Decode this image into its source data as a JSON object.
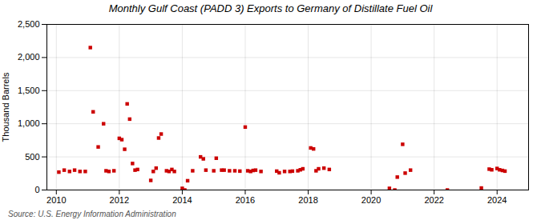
{
  "chart_data": {
    "type": "scatter",
    "title": "Monthly Gulf Coast (PADD 3) Exports to Germany of Distillate Fuel Oil",
    "ylabel": "Thousand Barrels",
    "annotations": [
      "Source: U.S. Energy Information Administration"
    ],
    "color": "#cc0000",
    "marker": "square",
    "grid": true,
    "xlim": [
      2009.7,
      2025.0
    ],
    "ylim": [
      0,
      2500
    ],
    "xticks": [
      2010,
      2012,
      2014,
      2016,
      2018,
      2020,
      2022,
      2024
    ],
    "yticks": [
      0,
      500,
      {
        "value": 1000,
        "label": "1,000"
      },
      {
        "value": 1500,
        "label": "1,500"
      },
      {
        "value": 2000,
        "label": "2,000"
      },
      {
        "value": 2500,
        "label": "2,500"
      }
    ],
    "x": [
      2010.08,
      2010.25,
      2010.42,
      2010.58,
      2010.75,
      2010.92,
      2011.08,
      2011.17,
      2011.33,
      2011.5,
      2011.58,
      2011.67,
      2011.83,
      2012.0,
      2012.08,
      2012.17,
      2012.25,
      2012.33,
      2012.42,
      2012.5,
      2012.58,
      2013.0,
      2013.08,
      2013.17,
      2013.25,
      2013.33,
      2013.5,
      2013.58,
      2013.67,
      2013.75,
      2014.0,
      2014.08,
      2014.17,
      2014.33,
      2014.58,
      2014.67,
      2014.75,
      2015.0,
      2015.08,
      2015.25,
      2015.33,
      2015.5,
      2015.67,
      2015.83,
      2016.0,
      2016.08,
      2016.17,
      2016.25,
      2016.33,
      2016.5,
      2017.0,
      2017.08,
      2017.25,
      2017.42,
      2017.5,
      2017.67,
      2017.75,
      2017.83,
      2018.08,
      2018.17,
      2018.25,
      2018.33,
      2018.5,
      2018.67,
      2020.58,
      2020.75,
      2020.83,
      2021.0,
      2021.08,
      2021.25,
      2022.42,
      2023.5,
      2023.75,
      2023.83,
      2024.0,
      2024.08,
      2024.17,
      2024.25
    ],
    "values": [
      270,
      300,
      280,
      300,
      280,
      280,
      2150,
      1180,
      650,
      1000,
      290,
      280,
      290,
      780,
      760,
      615,
      1300,
      1070,
      400,
      300,
      310,
      145,
      280,
      330,
      785,
      845,
      290,
      280,
      310,
      280,
      25,
      0,
      140,
      290,
      500,
      470,
      300,
      290,
      480,
      300,
      300,
      290,
      290,
      285,
      950,
      290,
      280,
      295,
      300,
      280,
      285,
      260,
      280,
      280,
      285,
      290,
      305,
      320,
      635,
      620,
      290,
      320,
      330,
      310,
      25,
      0,
      195,
      690,
      255,
      300,
      0,
      30,
      315,
      305,
      325,
      305,
      295,
      285
    ]
  }
}
